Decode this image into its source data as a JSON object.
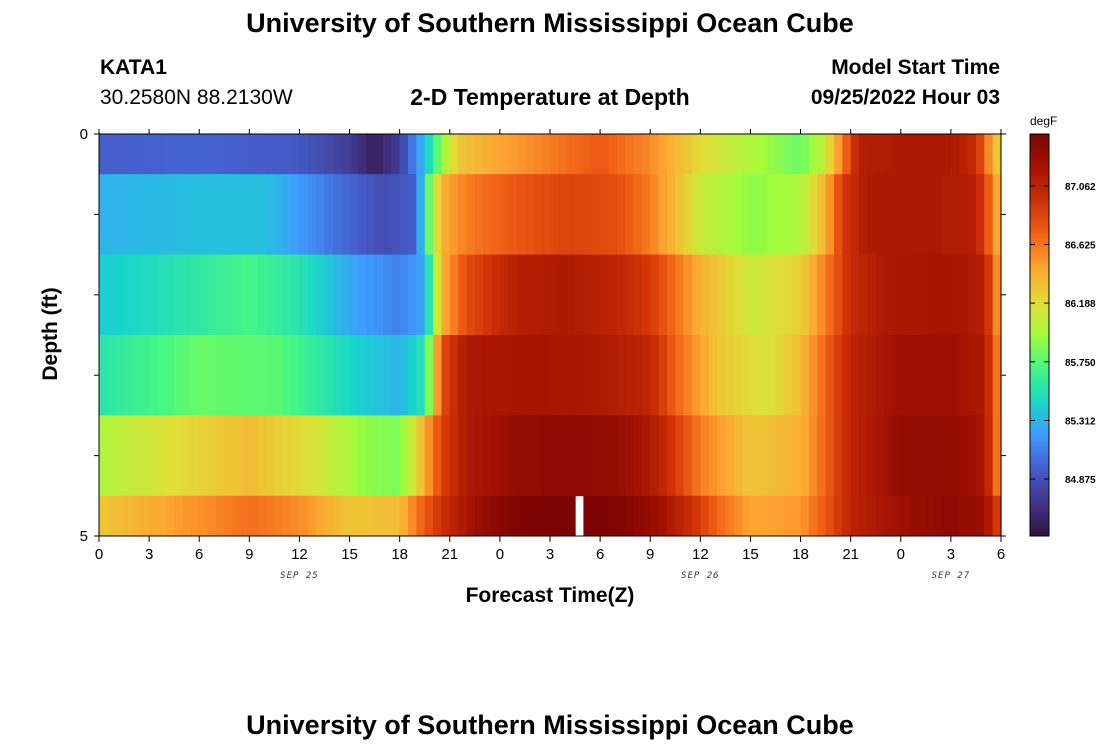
{
  "page": {
    "title": "University of Southern Mississippi Ocean Cube",
    "station": "KATA1",
    "coordinates": "30.2580N  88.2130W",
    "model_start_label": "Model Start Time",
    "model_start_value": "09/25/2022 Hour 03",
    "second_title": "University of Southern Mississippi Ocean Cube"
  },
  "chart_data": {
    "type": "heatmap",
    "title": "2-D Temperature at Depth",
    "xlabel": "Forecast Time(Z)",
    "ylabel": "Depth (ft)",
    "colorbar_unit": "degF",
    "colorbar_ticks": [
      84.875,
      85.312,
      85.75,
      86.188,
      86.625,
      87.062
    ],
    "colorbar_tick_labels": [
      "84.875",
      "85.312",
      "85.750",
      "86.188",
      "86.625",
      "87.062"
    ],
    "value_range": [
      84.45,
      87.45
    ],
    "x_range_hours": [
      0,
      54
    ],
    "x_tick_labels": [
      "0",
      "3",
      "6",
      "9",
      "12",
      "15",
      "18",
      "21",
      "0",
      "3",
      "6",
      "9",
      "12",
      "15",
      "18",
      "21",
      "0",
      "3",
      "6"
    ],
    "date_labels": [
      {
        "text": "SEP 25",
        "at_hour": 12
      },
      {
        "text": "SEP 26",
        "at_hour": 36
      },
      {
        "text": "SEP 27",
        "at_hour": 51
      }
    ],
    "y_range_ft": [
      0,
      5
    ],
    "y_tick_labels": [
      {
        "value": 0,
        "text": "0"
      },
      {
        "value": 5,
        "text": "5"
      }
    ],
    "depth_bands_ft": [
      [
        0,
        0.5
      ],
      [
        0.5,
        1.5
      ],
      [
        1.5,
        2.5
      ],
      [
        2.5,
        3.5
      ],
      [
        3.5,
        4.5
      ],
      [
        4.5,
        5
      ]
    ],
    "missing_data_hour": 28.5,
    "rows": [
      {
        "knots": [
          [
            0,
            84.95
          ],
          [
            6,
            84.98
          ],
          [
            12,
            84.92
          ],
          [
            15,
            84.75
          ],
          [
            16.5,
            84.55
          ],
          [
            18,
            84.75
          ],
          [
            19.5,
            85.35
          ],
          [
            20.5,
            85.9
          ],
          [
            21.5,
            86.3
          ],
          [
            24,
            86.45
          ],
          [
            27,
            86.6
          ],
          [
            30,
            86.75
          ],
          [
            33,
            86.55
          ],
          [
            36,
            86.2
          ],
          [
            39,
            86.0
          ],
          [
            42,
            85.8
          ],
          [
            43.5,
            86.1
          ],
          [
            44.5,
            86.6
          ],
          [
            45.5,
            87.1
          ],
          [
            48,
            87.15
          ],
          [
            51,
            87.15
          ],
          [
            52.5,
            87.0
          ],
          [
            53.5,
            86.4
          ],
          [
            54,
            86.2
          ]
        ]
      },
      {
        "knots": [
          [
            0,
            85.3
          ],
          [
            6,
            85.35
          ],
          [
            10,
            85.35
          ],
          [
            14,
            85.05
          ],
          [
            17,
            84.85
          ],
          [
            19,
            84.95
          ],
          [
            19.5,
            85.6
          ],
          [
            20.5,
            86.4
          ],
          [
            22,
            86.6
          ],
          [
            25,
            86.75
          ],
          [
            28,
            86.85
          ],
          [
            31,
            86.8
          ],
          [
            33,
            86.6
          ],
          [
            36,
            86.1
          ],
          [
            39,
            85.9
          ],
          [
            42,
            86.0
          ],
          [
            43.5,
            86.4
          ],
          [
            44.5,
            86.9
          ],
          [
            46,
            87.15
          ],
          [
            50,
            87.15
          ],
          [
            52.5,
            87.1
          ],
          [
            53.5,
            86.6
          ],
          [
            54,
            86.3
          ]
        ]
      },
      {
        "knots": [
          [
            0,
            85.4
          ],
          [
            5,
            85.55
          ],
          [
            9,
            85.7
          ],
          [
            12,
            85.55
          ],
          [
            15,
            85.25
          ],
          [
            18,
            85.1
          ],
          [
            19.5,
            85.25
          ],
          [
            20.5,
            86.4
          ],
          [
            22,
            86.8
          ],
          [
            25,
            87.1
          ],
          [
            28,
            87.15
          ],
          [
            31,
            87.05
          ],
          [
            33,
            86.9
          ],
          [
            36,
            86.4
          ],
          [
            39,
            86.1
          ],
          [
            42,
            86.25
          ],
          [
            43.5,
            86.6
          ],
          [
            45,
            87.0
          ],
          [
            47,
            87.15
          ],
          [
            51,
            87.2
          ],
          [
            53,
            87.1
          ],
          [
            53.7,
            86.6
          ],
          [
            54,
            86.3
          ]
        ]
      },
      {
        "knots": [
          [
            0,
            85.55
          ],
          [
            6,
            85.8
          ],
          [
            11,
            85.75
          ],
          [
            15,
            85.45
          ],
          [
            18,
            85.3
          ],
          [
            19.5,
            85.55
          ],
          [
            20.5,
            86.8
          ],
          [
            22,
            87.15
          ],
          [
            26,
            87.2
          ],
          [
            30,
            87.15
          ],
          [
            33,
            87.05
          ],
          [
            34.5,
            86.7
          ],
          [
            37,
            86.3
          ],
          [
            40,
            86.15
          ],
          [
            42,
            86.35
          ],
          [
            43.5,
            86.7
          ],
          [
            45,
            87.05
          ],
          [
            48,
            87.25
          ],
          [
            51,
            87.25
          ],
          [
            53,
            87.15
          ],
          [
            53.8,
            86.6
          ],
          [
            54,
            86.3
          ]
        ]
      },
      {
        "knots": [
          [
            0,
            86.0
          ],
          [
            5,
            86.2
          ],
          [
            9,
            86.35
          ],
          [
            13,
            86.15
          ],
          [
            16,
            85.9
          ],
          [
            18,
            85.85
          ],
          [
            19,
            86.2
          ],
          [
            20.5,
            86.85
          ],
          [
            22,
            87.15
          ],
          [
            25,
            87.3
          ],
          [
            28,
            87.35
          ],
          [
            31,
            87.3
          ],
          [
            33,
            87.15
          ],
          [
            34.5,
            86.9
          ],
          [
            36,
            86.6
          ],
          [
            39,
            86.3
          ],
          [
            42,
            86.4
          ],
          [
            43.5,
            86.7
          ],
          [
            45,
            87.05
          ],
          [
            48,
            87.3
          ],
          [
            51,
            87.3
          ],
          [
            53,
            87.2
          ],
          [
            53.8,
            86.6
          ],
          [
            54,
            86.3
          ]
        ]
      },
      {
        "knots": [
          [
            0,
            86.3
          ],
          [
            4,
            86.45
          ],
          [
            9,
            86.65
          ],
          [
            12,
            86.55
          ],
          [
            15,
            86.3
          ],
          [
            18,
            86.35
          ],
          [
            19.5,
            86.75
          ],
          [
            21,
            87.05
          ],
          [
            23,
            87.3
          ],
          [
            25,
            87.42
          ],
          [
            28,
            87.45
          ],
          [
            31,
            87.42
          ],
          [
            33,
            87.3
          ],
          [
            35,
            87.05
          ],
          [
            37,
            86.7
          ],
          [
            39,
            86.45
          ],
          [
            42,
            86.5
          ],
          [
            43.5,
            86.75
          ],
          [
            45,
            87.05
          ],
          [
            48,
            87.25
          ],
          [
            51,
            87.35
          ],
          [
            53,
            87.25
          ],
          [
            54,
            86.8
          ]
        ]
      }
    ]
  }
}
